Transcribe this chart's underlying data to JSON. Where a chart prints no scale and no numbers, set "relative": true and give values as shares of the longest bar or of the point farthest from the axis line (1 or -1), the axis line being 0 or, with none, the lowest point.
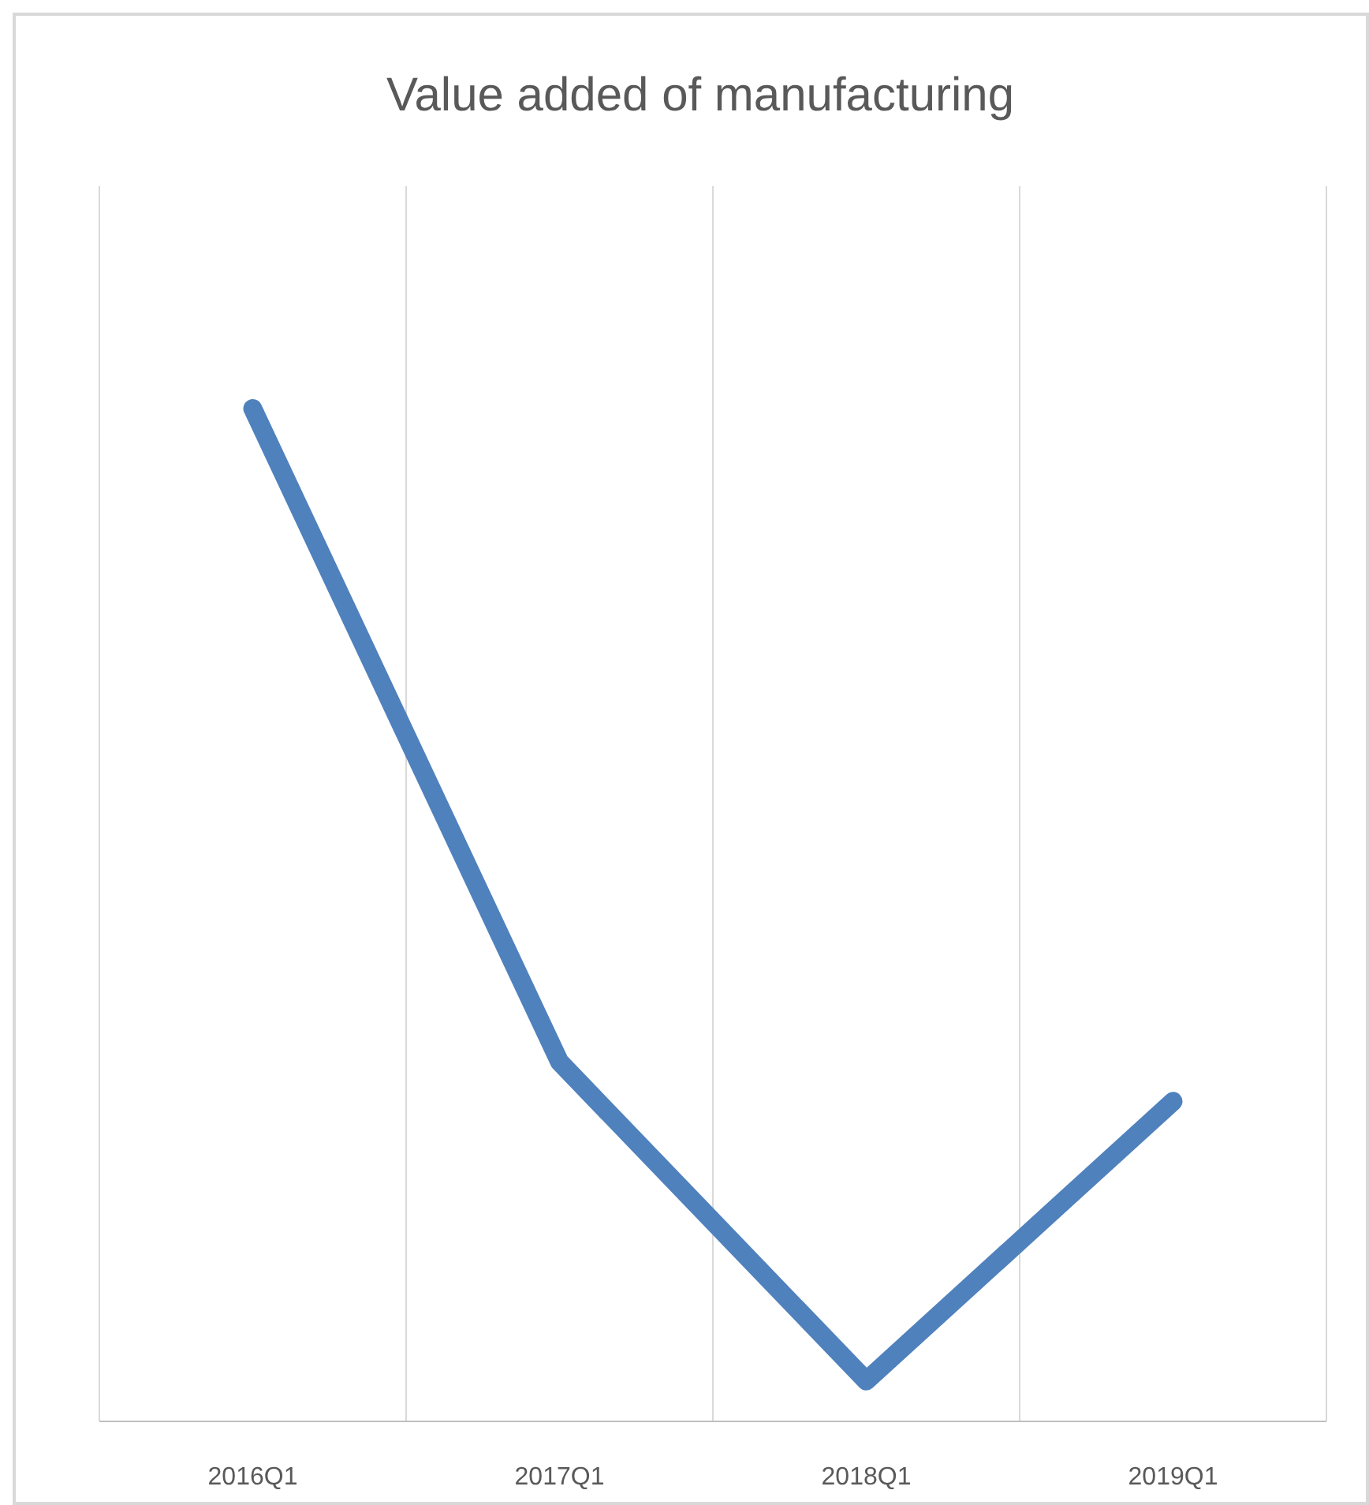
{
  "chart_data": {
    "type": "line",
    "title": "Value added of manufacturing",
    "categories": [
      "2016Q1",
      "2017Q1",
      "2018Q1",
      "2019Q1"
    ],
    "series": [
      {
        "color": "#4f81bd",
        "values": [
          1,
          0.355,
          0.04,
          0.316
        ]
      }
    ],
    "relative": true,
    "grid": "x",
    "marker": "none",
    "line_style": "solid"
  }
}
